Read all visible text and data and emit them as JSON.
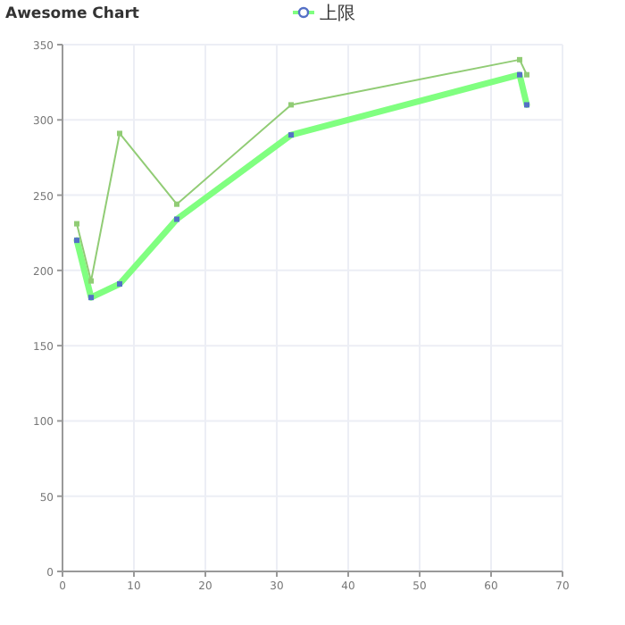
{
  "chart_data": {
    "type": "line",
    "title": "Awesome Chart",
    "legend": "top",
    "grid": true,
    "marker": "square",
    "line_style": "solid",
    "xlim": [
      0,
      70
    ],
    "xticks": [
      0,
      10,
      20,
      30,
      40,
      50,
      60,
      70
    ],
    "ylim": [
      0,
      350
    ],
    "yticks": [
      0,
      50,
      100,
      150,
      200,
      250,
      300,
      350
    ],
    "series": [
      {
        "name": "上限",
        "color": "#80ff80",
        "colors": [
          "#5470c6",
          "#5470c6",
          "#5470c6",
          "#5470c6",
          "#5470c6",
          "#5470c6",
          "#5470c6"
        ],
        "x": [
          2,
          4,
          8,
          16,
          32,
          64,
          65
        ],
        "values": [
          220,
          182,
          191,
          234,
          290,
          330,
          310
        ]
      },
      {
        "color": "#91cc75",
        "x": [
          2,
          4,
          8,
          16,
          32,
          64,
          65
        ],
        "values": [
          231,
          193,
          291,
          244,
          310,
          340,
          330
        ]
      }
    ]
  }
}
